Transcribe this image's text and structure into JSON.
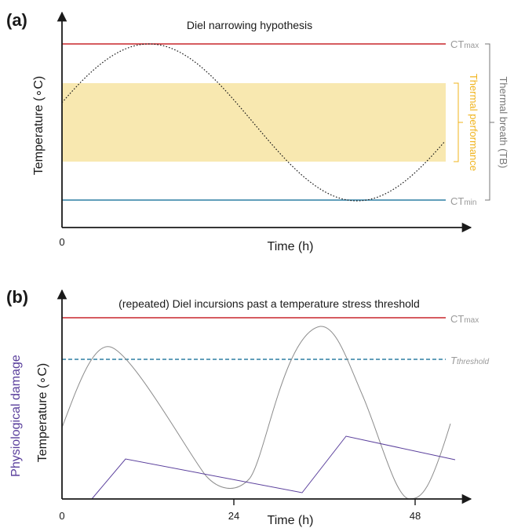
{
  "colors": {
    "axis": "#1a1a1a",
    "ctmax": "#c8262c",
    "ctmin": "#2d7ea3",
    "threshold": "#2d7ea3",
    "band": "#f8e8b0",
    "band_label": "#f0b41e",
    "gray_label": "#9a9a9a",
    "damage": "#5a3f9c"
  },
  "panel_a": {
    "letter": "(a)",
    "title": "Diel narrowing hypothesis",
    "ylabel": "Temperature (∘C)",
    "xlabel": "Time (h)",
    "x_tick": "0",
    "ctmax_main": "CT",
    "ctmax_sub": "max",
    "ctmin_main": "CT",
    "ctmin_sub": "min",
    "band_label": "Thermal performance",
    "breadth_label": "Thermal breath (TB)"
  },
  "panel_b": {
    "letter": "(b)",
    "title": "(repeated) Diel incursions past a temperature stress threshold",
    "ylabel": "Temperature (∘C)",
    "ylabel_damage": "Physiological damage",
    "xlabel": "Time (h)",
    "x_ticks": [
      "0",
      "24",
      "48"
    ],
    "ctmax_main": "CT",
    "ctmax_sub": "max",
    "threshold_main": "T",
    "threshold_sub": "threshold"
  }
}
